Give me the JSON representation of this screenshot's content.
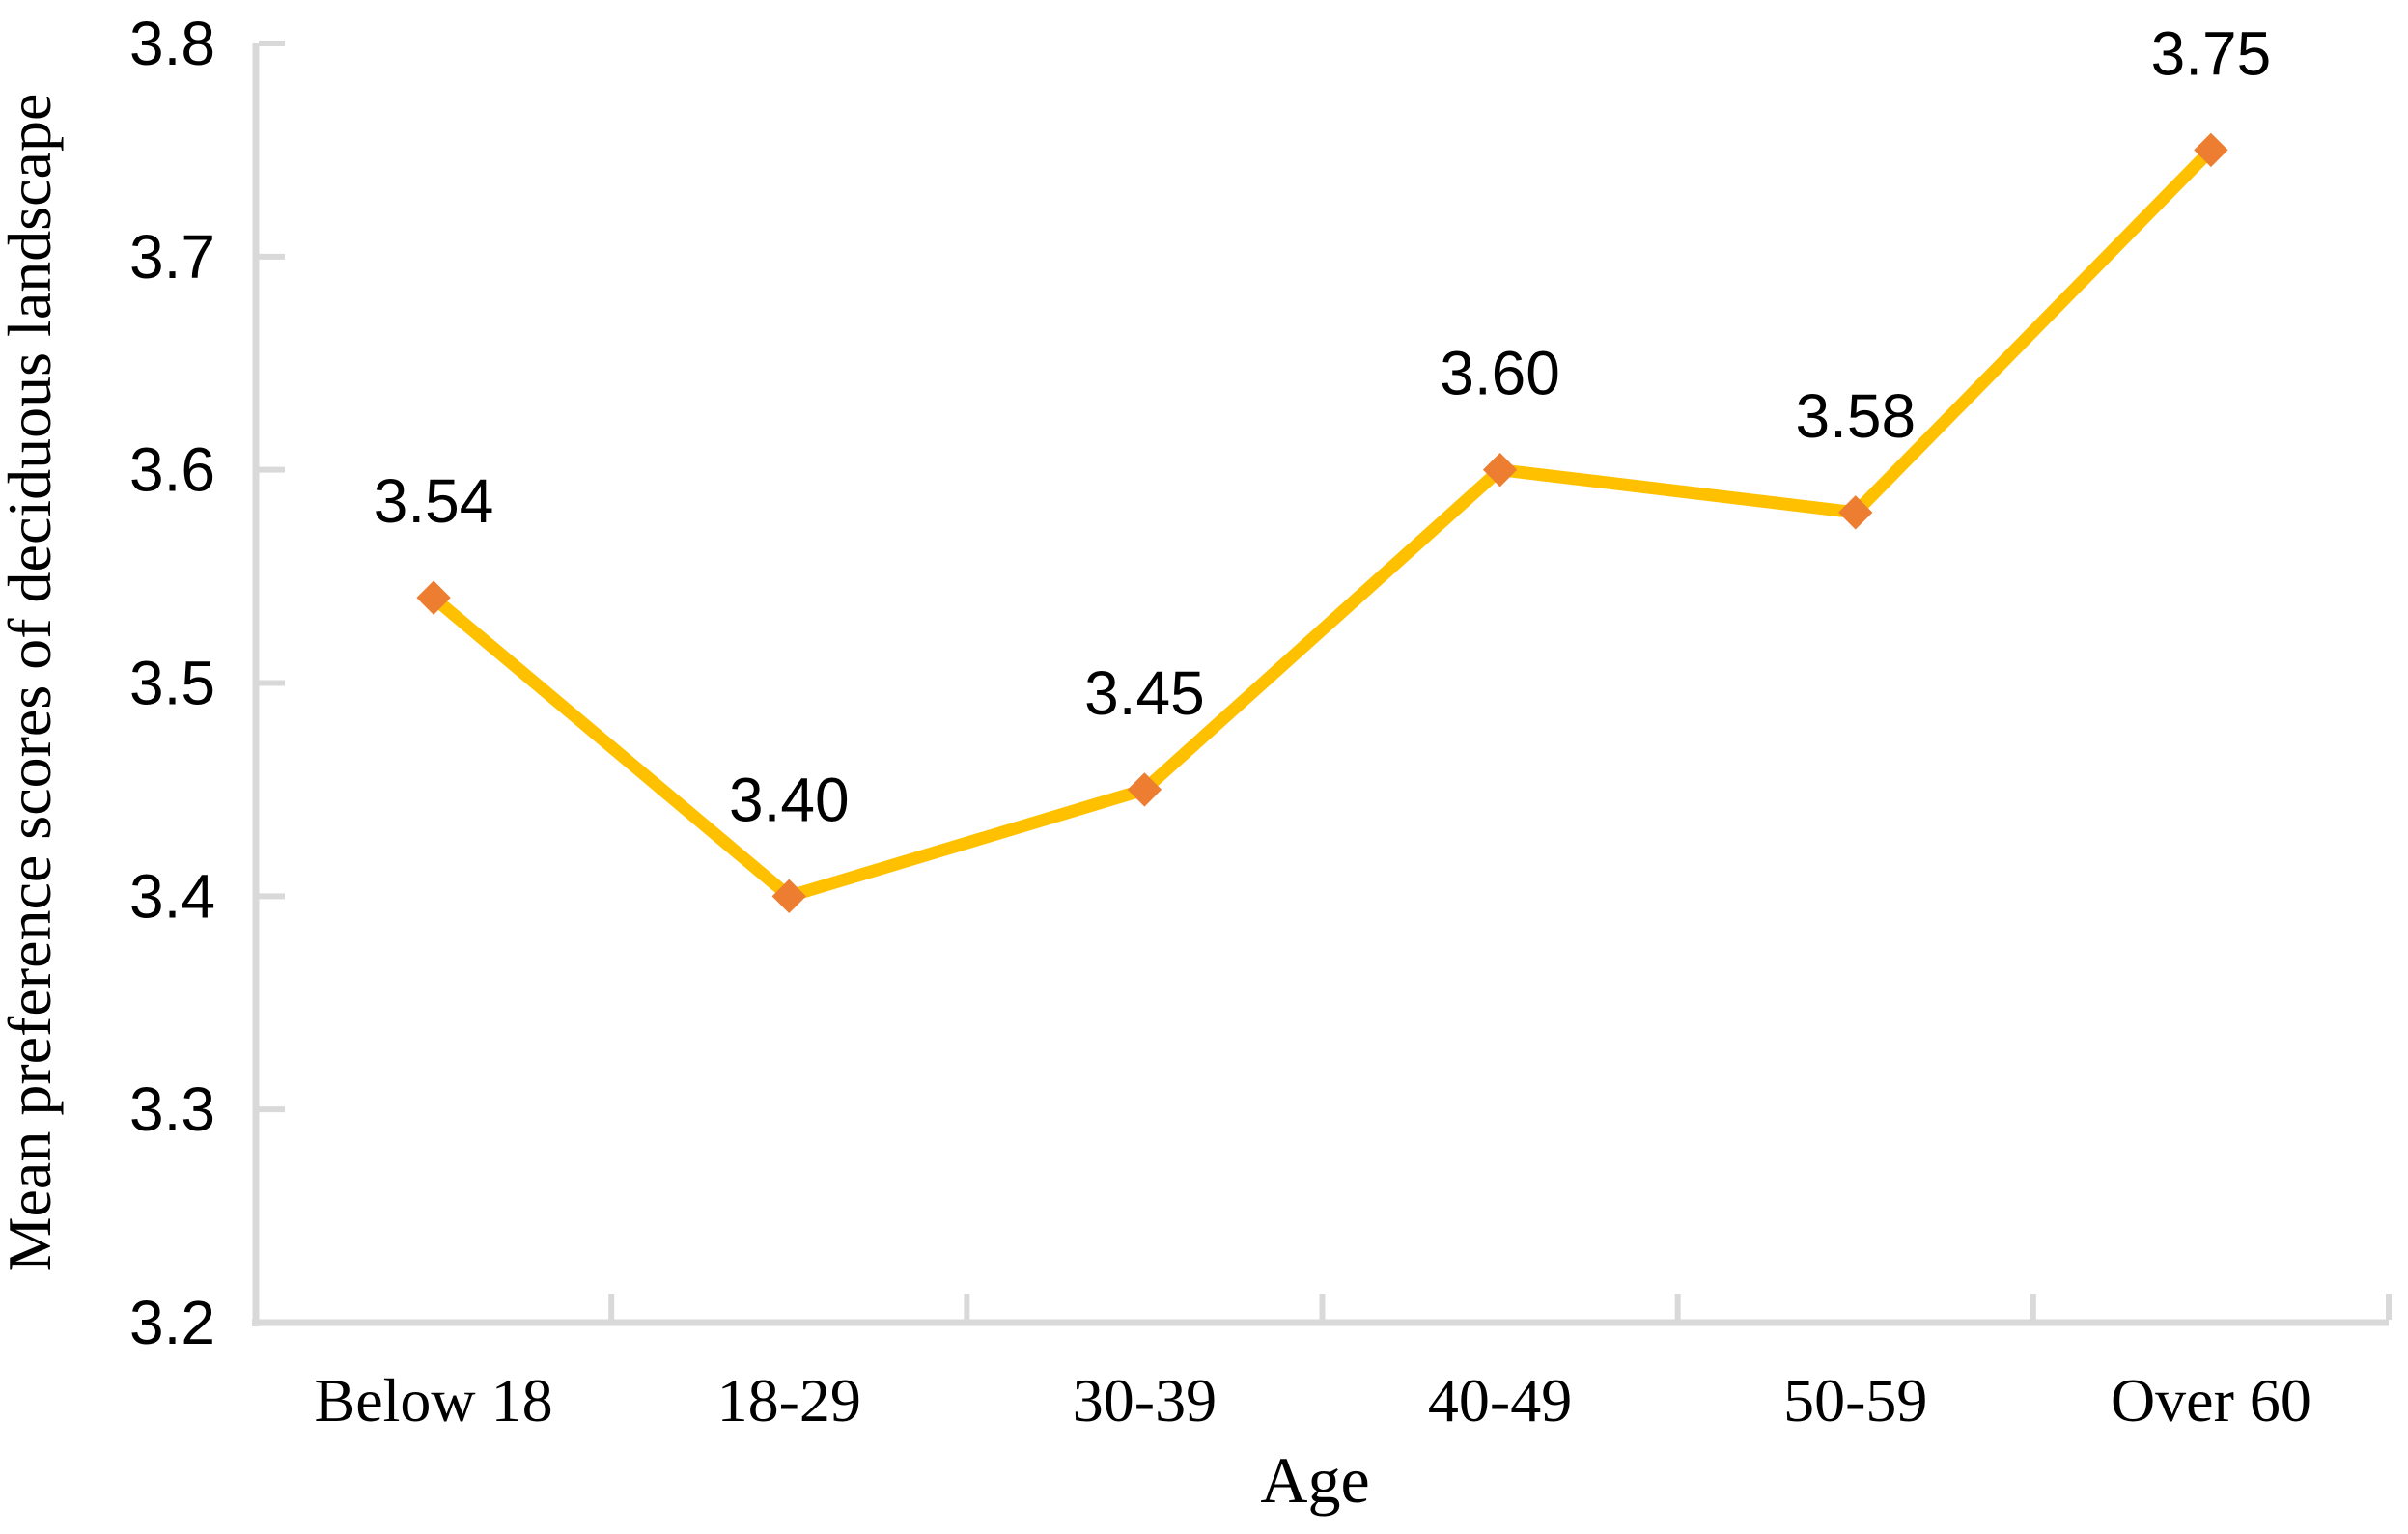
{
  "chart_data": {
    "type": "line",
    "title": "",
    "xlabel": "Age",
    "ylabel": "Mean preference scores of deciduous landscape",
    "categories": [
      "Below 18",
      "18-29",
      "30-39",
      "40-49",
      "50-59",
      "Over 60"
    ],
    "values": [
      3.54,
      3.4,
      3.45,
      3.6,
      3.58,
      3.75
    ],
    "point_labels": [
      "3.54",
      "3.40",
      "3.45",
      "3.60",
      "3.58",
      "3.75"
    ],
    "y_ticks": [
      "3.2",
      "3.3",
      "3.4",
      "3.5",
      "3.6",
      "3.7",
      "3.8"
    ],
    "ylim": [
      3.2,
      3.8
    ],
    "grid": "off",
    "legend": "none",
    "marker_shape": "diamond",
    "colors": {
      "line": "#FFC000",
      "marker": "#ED7D31",
      "axis": "#D9D9D9",
      "text": "#000000"
    }
  }
}
